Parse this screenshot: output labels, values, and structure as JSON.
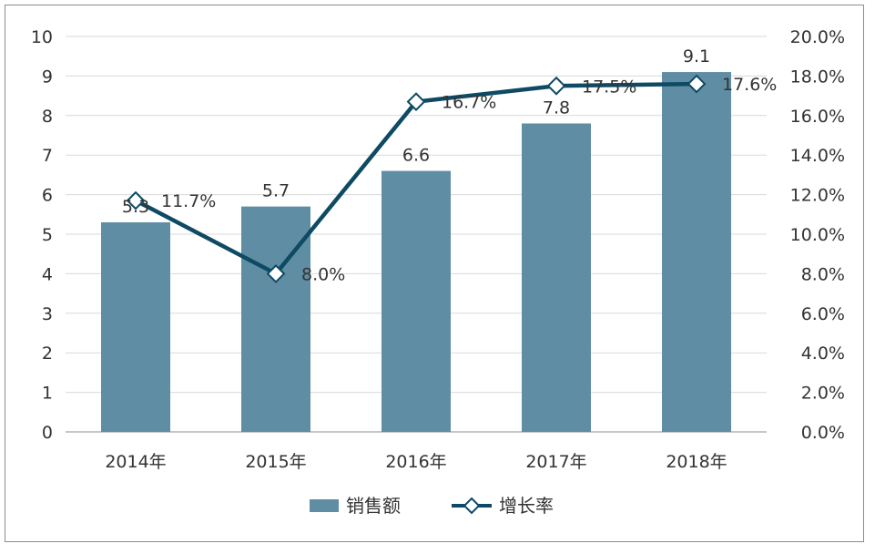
{
  "chart_data": {
    "type": "bar",
    "categories": [
      "2014年",
      "2015年",
      "2016年",
      "2017年",
      "2018年"
    ],
    "series": [
      {
        "name": "销售额",
        "type": "bar",
        "axis": "left",
        "values": [
          5.3,
          5.7,
          6.6,
          7.8,
          9.1
        ],
        "labels": [
          "5.3",
          "5.7",
          "6.6",
          "7.8",
          "9.1"
        ],
        "color": "#5f8ea4"
      },
      {
        "name": "增长率",
        "type": "line",
        "axis": "right",
        "values": [
          11.7,
          8.0,
          16.7,
          17.5,
          17.6
        ],
        "labels": [
          "11.7%",
          "8.0%",
          "16.7%",
          "17.5%",
          "17.6%"
        ],
        "color": "#0e4a63"
      }
    ],
    "left_axis": {
      "min": 0,
      "max": 10,
      "ticks": [
        "0",
        "1",
        "2",
        "3",
        "4",
        "5",
        "6",
        "7",
        "8",
        "9",
        "10"
      ]
    },
    "right_axis": {
      "min": 0,
      "max": 20,
      "ticks": [
        "0.0%",
        "2.0%",
        "4.0%",
        "6.0%",
        "8.0%",
        "10.0%",
        "12.0%",
        "14.0%",
        "16.0%",
        "18.0%",
        "20.0%"
      ]
    },
    "grid": true,
    "legend": "bottom-center"
  }
}
